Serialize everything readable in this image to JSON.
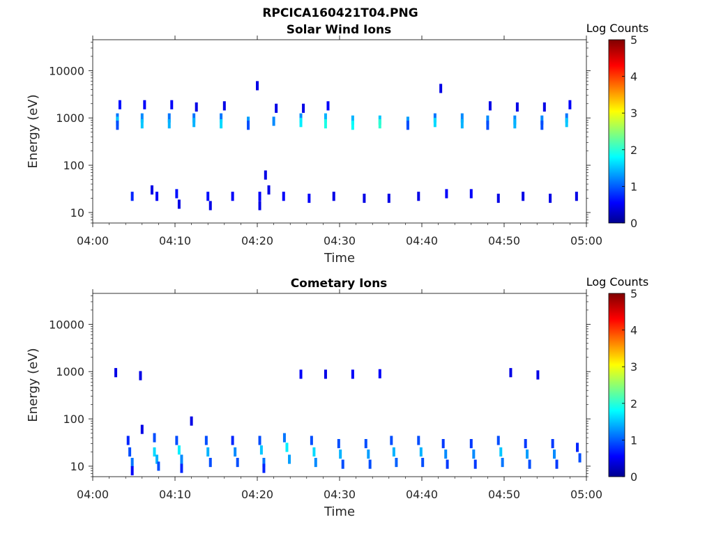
{
  "figure": {
    "title": "RPCICA160421T04.PNG"
  },
  "chart_data": [
    {
      "type": "heatmap",
      "title": "Solar Wind Ions",
      "xlabel": "Time",
      "ylabel": "Energy (eV)",
      "yscale": "log",
      "ylim": [
        6,
        45000
      ],
      "xlim": [
        "04:00",
        "05:00"
      ],
      "x_ticks": [
        "04:00",
        "04:10",
        "04:20",
        "04:30",
        "04:40",
        "04:50",
        "05:00"
      ],
      "y_ticks": [
        "10",
        "100",
        "1000",
        "10000"
      ],
      "colorbar": {
        "label": "Log Counts",
        "range": [
          0,
          5
        ],
        "ticks": [
          "0",
          "1",
          "2",
          "3",
          "4",
          "5"
        ]
      },
      "note_value": "cells: [time minutes after 04:00, energy eV, log counts]",
      "cells": [
        [
          3.0,
          1000,
          1.2
        ],
        [
          3.0,
          850,
          1.6
        ],
        [
          3.0,
          700,
          1.0
        ],
        [
          3.3,
          1900,
          0.7
        ],
        [
          6.0,
          1000,
          1.3
        ],
        [
          6.0,
          750,
          1.6
        ],
        [
          6.3,
          1900,
          0.6
        ],
        [
          9.3,
          1000,
          1.2
        ],
        [
          9.3,
          750,
          1.5
        ],
        [
          9.6,
          1900,
          0.6
        ],
        [
          12.3,
          1000,
          1.2
        ],
        [
          12.3,
          800,
          1.5
        ],
        [
          12.6,
          1700,
          0.5
        ],
        [
          15.6,
          1000,
          1.2
        ],
        [
          15.6,
          750,
          1.7
        ],
        [
          16.0,
          1800,
          0.5
        ],
        [
          18.9,
          850,
          1.4
        ],
        [
          18.9,
          700,
          1.0
        ],
        [
          20.0,
          4800,
          0.5
        ],
        [
          22.0,
          850,
          1.3
        ],
        [
          22.3,
          1600,
          0.5
        ],
        [
          25.3,
          1000,
          1.3
        ],
        [
          25.3,
          800,
          1.8
        ],
        [
          25.6,
          1600,
          0.5
        ],
        [
          28.3,
          1000,
          1.5
        ],
        [
          28.3,
          750,
          2.0
        ],
        [
          28.6,
          1800,
          0.6
        ],
        [
          31.6,
          900,
          1.5
        ],
        [
          31.6,
          700,
          1.9
        ],
        [
          34.9,
          900,
          1.6
        ],
        [
          34.9,
          750,
          2.1
        ],
        [
          38.3,
          850,
          1.4
        ],
        [
          38.3,
          700,
          1.0
        ],
        [
          42.3,
          4200,
          0.5
        ],
        [
          41.6,
          1000,
          1.2
        ],
        [
          41.6,
          800,
          1.7
        ],
        [
          44.9,
          1000,
          1.3
        ],
        [
          44.9,
          750,
          1.5
        ],
        [
          48.0,
          900,
          1.3
        ],
        [
          48.0,
          700,
          1.0
        ],
        [
          48.3,
          1800,
          0.5
        ],
        [
          51.3,
          900,
          1.3
        ],
        [
          51.3,
          750,
          1.5
        ],
        [
          51.6,
          1700,
          0.5
        ],
        [
          54.6,
          900,
          1.3
        ],
        [
          54.6,
          700,
          1.0
        ],
        [
          54.9,
          1700,
          0.5
        ],
        [
          57.6,
          1000,
          1.2
        ],
        [
          57.6,
          800,
          1.6
        ],
        [
          58.0,
          1900,
          0.6
        ],
        [
          4.8,
          22,
          0.8
        ],
        [
          7.2,
          30,
          0.5
        ],
        [
          7.8,
          22,
          0.6
        ],
        [
          10.2,
          25,
          0.7
        ],
        [
          10.5,
          15,
          0.5
        ],
        [
          14.0,
          22,
          0.7
        ],
        [
          14.3,
          14,
          0.5
        ],
        [
          17.0,
          22,
          0.6
        ],
        [
          20.3,
          22,
          0.6
        ],
        [
          20.3,
          14,
          0.5
        ],
        [
          21.4,
          30,
          0.5
        ],
        [
          23.2,
          22,
          0.6
        ],
        [
          26.3,
          20,
          0.6
        ],
        [
          29.3,
          22,
          0.5
        ],
        [
          33.0,
          20,
          0.5
        ],
        [
          36.0,
          20,
          0.5
        ],
        [
          39.6,
          22,
          0.5
        ],
        [
          43.0,
          25,
          0.6
        ],
        [
          46.0,
          25,
          0.6
        ],
        [
          49.3,
          20,
          0.5
        ],
        [
          52.3,
          22,
          0.5
        ],
        [
          55.6,
          20,
          0.5
        ],
        [
          58.8,
          22,
          0.5
        ],
        [
          21.0,
          62,
          0.5
        ]
      ]
    },
    {
      "type": "heatmap",
      "title": "Cometary Ions",
      "xlabel": "Time",
      "ylabel": "Energy (eV)",
      "yscale": "log",
      "ylim": [
        6,
        45000
      ],
      "xlim": [
        "04:00",
        "05:00"
      ],
      "x_ticks": [
        "04:00",
        "04:10",
        "04:20",
        "04:30",
        "04:40",
        "04:50",
        "05:00"
      ],
      "y_ticks": [
        "10",
        "100",
        "1000",
        "10000"
      ],
      "colorbar": {
        "label": "Log Counts",
        "range": [
          0,
          5
        ],
        "ticks": [
          "0",
          "1",
          "2",
          "3",
          "4",
          "5"
        ]
      },
      "cells": [
        [
          4.3,
          35,
          0.8
        ],
        [
          4.5,
          20,
          1.0
        ],
        [
          4.8,
          12,
          1.2
        ],
        [
          4.8,
          8,
          0.6
        ],
        [
          7.5,
          40,
          1.0
        ],
        [
          7.5,
          20,
          1.7
        ],
        [
          7.8,
          14,
          1.5
        ],
        [
          8.0,
          10,
          1.0
        ],
        [
          6.0,
          60,
          0.5
        ],
        [
          10.2,
          35,
          1.0
        ],
        [
          10.5,
          22,
          1.8
        ],
        [
          10.8,
          14,
          1.3
        ],
        [
          10.8,
          9,
          0.8
        ],
        [
          13.8,
          35,
          1.0
        ],
        [
          14.0,
          20,
          1.5
        ],
        [
          14.3,
          12,
          1.0
        ],
        [
          12.0,
          90,
          0.5
        ],
        [
          17.0,
          35,
          0.8
        ],
        [
          17.3,
          20,
          1.3
        ],
        [
          17.6,
          12,
          1.0
        ],
        [
          20.3,
          35,
          1.0
        ],
        [
          20.5,
          22,
          1.6
        ],
        [
          20.8,
          12,
          1.2
        ],
        [
          20.8,
          9,
          0.8
        ],
        [
          23.3,
          40,
          1.2
        ],
        [
          23.6,
          25,
          1.8
        ],
        [
          23.9,
          14,
          1.4
        ],
        [
          26.6,
          35,
          1.0
        ],
        [
          26.9,
          20,
          1.7
        ],
        [
          27.1,
          12,
          1.3
        ],
        [
          29.9,
          30,
          1.0
        ],
        [
          30.1,
          18,
          1.5
        ],
        [
          30.4,
          11,
          1.0
        ],
        [
          33.2,
          30,
          1.0
        ],
        [
          33.5,
          18,
          1.4
        ],
        [
          33.7,
          11,
          1.0
        ],
        [
          36.3,
          35,
          1.0
        ],
        [
          36.6,
          20,
          1.5
        ],
        [
          36.9,
          12,
          1.1
        ],
        [
          39.6,
          35,
          1.0
        ],
        [
          39.9,
          20,
          1.5
        ],
        [
          40.1,
          12,
          1.0
        ],
        [
          42.6,
          30,
          0.9
        ],
        [
          42.9,
          18,
          1.3
        ],
        [
          43.1,
          11,
          0.9
        ],
        [
          46.0,
          30,
          0.9
        ],
        [
          46.3,
          18,
          1.3
        ],
        [
          46.5,
          11,
          0.9
        ],
        [
          49.3,
          35,
          1.0
        ],
        [
          49.6,
          20,
          1.6
        ],
        [
          49.8,
          12,
          1.2
        ],
        [
          52.6,
          30,
          0.9
        ],
        [
          52.8,
          18,
          1.4
        ],
        [
          53.1,
          11,
          1.0
        ],
        [
          55.9,
          30,
          0.9
        ],
        [
          56.1,
          18,
          1.3
        ],
        [
          56.4,
          11,
          0.9
        ],
        [
          58.9,
          25,
          0.8
        ],
        [
          59.2,
          15,
          1.0
        ],
        [
          2.8,
          950,
          0.5
        ],
        [
          5.8,
          820,
          0.5
        ],
        [
          25.3,
          880,
          0.6
        ],
        [
          28.3,
          880,
          0.5
        ],
        [
          31.6,
          880,
          0.6
        ],
        [
          34.9,
          900,
          0.6
        ],
        [
          50.8,
          950,
          0.5
        ],
        [
          54.1,
          850,
          0.5
        ]
      ]
    }
  ]
}
